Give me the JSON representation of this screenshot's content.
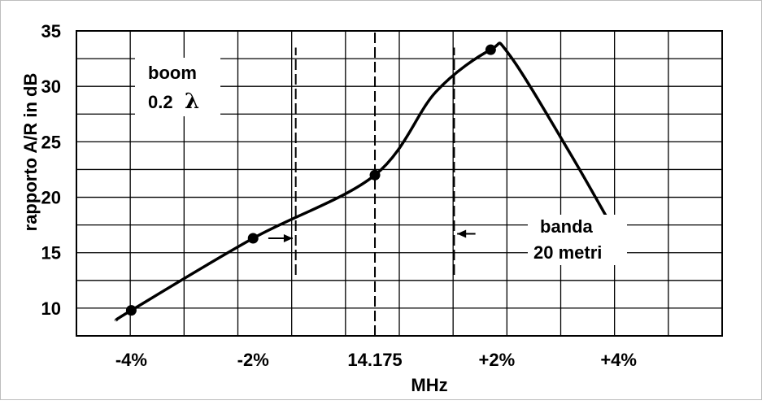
{
  "chart_data": {
    "type": "line",
    "title": "",
    "xlabel": "MHz",
    "ylabel": "rapporto A/R in dB",
    "xlim": [
      -4.9,
      5.7
    ],
    "ylim": [
      7.5,
      35
    ],
    "yticks": [
      10,
      15,
      20,
      25,
      30,
      35
    ],
    "xticks": [
      {
        "value": -4,
        "label": "-4%"
      },
      {
        "value": -2,
        "label": "-2%"
      },
      {
        "value": 0,
        "label": "14.175"
      },
      {
        "value": 2,
        "label": "+2%"
      },
      {
        "value": 4,
        "label": "+4%"
      }
    ],
    "grid": true,
    "series": [
      {
        "name": "",
        "curve": [
          [
            -4.25,
            8.9
          ],
          [
            -4,
            9.8
          ],
          [
            -2,
            16.3
          ],
          [
            0,
            22.0
          ],
          [
            1.0,
            29.5
          ],
          [
            1.9,
            33.3
          ],
          [
            2.2,
            32.9
          ],
          [
            3.2,
            24.0
          ],
          [
            4,
            16.3
          ]
        ],
        "markers": [
          [
            -4,
            9.8
          ],
          [
            -2,
            16.3
          ],
          [
            0,
            22.0
          ],
          [
            1.9,
            33.3
          ],
          [
            4,
            16.3
          ]
        ]
      }
    ],
    "vlines": [
      {
        "x": -1.3,
        "y": [
          13.0,
          33.5
        ],
        "style": "dashed"
      },
      {
        "x": 0,
        "y": [
          7.5,
          35
        ],
        "style": "dashed"
      },
      {
        "x": 1.3,
        "y": [
          13.0,
          33.5
        ],
        "style": "dashed"
      }
    ],
    "annotations": {
      "boom_line1": "boom",
      "boom_line2": "0.2",
      "boom_symbol": "λ",
      "banda_line1": "banda",
      "banda_line2": "20 metri"
    },
    "arrows": [
      {
        "direction": "right",
        "x_from": -1.75,
        "x_to": -1.35,
        "y": 16.3
      },
      {
        "direction": "left",
        "x_from": 1.65,
        "x_to": 1.35,
        "y": 16.7
      }
    ]
  }
}
